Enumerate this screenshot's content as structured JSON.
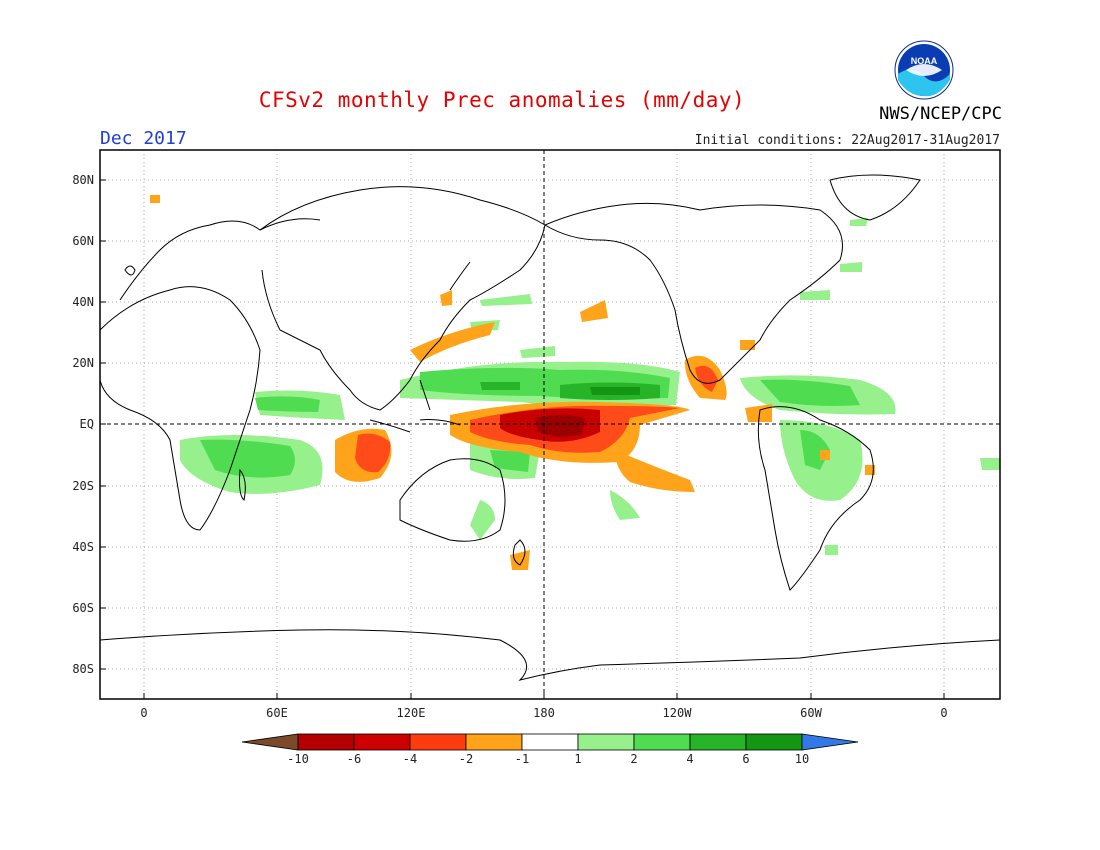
{
  "title": "CFSv2 monthly Prec anomalies (mm/day)",
  "target_month": "Dec 2017",
  "initial_conditions": "Initial conditions: 22Aug2017-31Aug2017",
  "agency": "NWS/NCEP/CPC",
  "logo_text": "NOAA",
  "lat_ticks": [
    "80N",
    "60N",
    "40N",
    "20N",
    "EQ",
    "20S",
    "40S",
    "60S",
    "80S"
  ],
  "lon_ticks": [
    "0",
    "60E",
    "120E",
    "180",
    "120W",
    "60W",
    "0"
  ],
  "colorbar": {
    "labels": [
      "-10",
      "-6",
      "-4",
      "-2",
      "-1",
      "1",
      "2",
      "4",
      "6",
      "10"
    ],
    "colors": [
      "#7a4a2a",
      "#b40000",
      "#cc0000",
      "#ff3c10",
      "#ffa41a",
      "#ffffff",
      "#96f08c",
      "#50dc50",
      "#28b428",
      "#149614",
      "#3278e6"
    ]
  },
  "colors": {
    "title": "#e60000",
    "month": "#1f3fd8",
    "dry_strong": "#c80000",
    "dry_moderate": "#ff4a1a",
    "dry_weak": "#ffa41a",
    "wet_weak": "#96f08c",
    "wet_moderate": "#50dc50",
    "wet_strong": "#149614"
  }
}
